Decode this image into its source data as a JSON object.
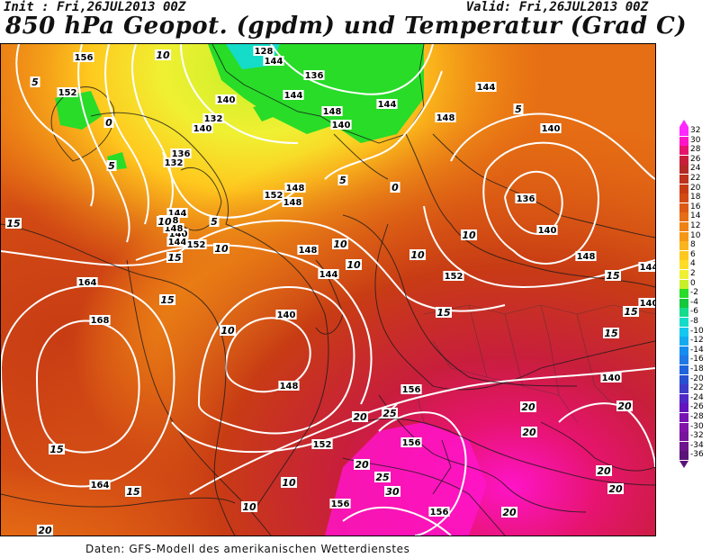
{
  "header": {
    "init": "Init : Fri,26JUL2013 00Z",
    "valid": "Valid: Fri,26JUL2013 00Z",
    "title": "850 hPa Geopot. (gpdm) und Temperatur (Grad C)"
  },
  "footer": "Daten: GFS-Modell des amerikanischen Wetterdienstes",
  "legend": {
    "levels": [
      {
        "label": "32",
        "color": "#ff28ff"
      },
      {
        "label": "30",
        "color": "#ff14c8"
      },
      {
        "label": "28",
        "color": "#e6146e"
      },
      {
        "label": "26",
        "color": "#c81e3c"
      },
      {
        "label": "24",
        "color": "#b42828"
      },
      {
        "label": "22",
        "color": "#be321e"
      },
      {
        "label": "20",
        "color": "#c83c14"
      },
      {
        "label": "18",
        "color": "#d24a14"
      },
      {
        "label": "16",
        "color": "#dc5a14"
      },
      {
        "label": "14",
        "color": "#e66e14"
      },
      {
        "label": "12",
        "color": "#ee8214"
      },
      {
        "label": "10",
        "color": "#f59614"
      },
      {
        "label": "8",
        "color": "#fab41e"
      },
      {
        "label": "6",
        "color": "#ffc81e"
      },
      {
        "label": "4",
        "color": "#ffdc28"
      },
      {
        "label": "2",
        "color": "#f0f032"
      },
      {
        "label": "0",
        "color": "#c8f028"
      },
      {
        "label": "-2",
        "color": "#28dc28"
      },
      {
        "label": "-4",
        "color": "#14c83c"
      },
      {
        "label": "-6",
        "color": "#14dc8c"
      },
      {
        "label": "-8",
        "color": "#14dcc8"
      },
      {
        "label": "-10",
        "color": "#14c8f0"
      },
      {
        "label": "-12",
        "color": "#14aaf0"
      },
      {
        "label": "-14",
        "color": "#148cf0"
      },
      {
        "label": "-16",
        "color": "#1e78e6"
      },
      {
        "label": "-18",
        "color": "#1e64dc"
      },
      {
        "label": "-20",
        "color": "#2850d2"
      },
      {
        "label": "-22",
        "color": "#3c3cc8"
      },
      {
        "label": "-24",
        "color": "#5028c8"
      },
      {
        "label": "-26",
        "color": "#6414be"
      },
      {
        "label": "-28",
        "color": "#7814b4"
      },
      {
        "label": "-30",
        "color": "#8214aa"
      },
      {
        "label": "-32",
        "color": "#78149b"
      },
      {
        "label": "-34",
        "color": "#6e148c"
      },
      {
        "label": "-36",
        "color": "#5a1478"
      }
    ]
  },
  "map": {
    "geopotential_labels": [
      "156",
      "152",
      "140",
      "136",
      "132",
      "128",
      "136",
      "144",
      "140",
      "148",
      "140",
      "144",
      "148",
      "144",
      "140",
      "136",
      "140",
      "152",
      "148",
      "144",
      "148",
      "140",
      "148",
      "144",
      "132",
      "144",
      "148",
      "152",
      "148",
      "164",
      "144",
      "168",
      "140",
      "152",
      "148",
      "148",
      "140",
      "156",
      "156",
      "152",
      "164",
      "156",
      "156",
      "144",
      "140"
    ],
    "temperature_labels": [
      "5",
      "10",
      "5",
      "0",
      "5",
      "10",
      "15",
      "15",
      "10",
      "15",
      "10",
      "5",
      "10",
      "10",
      "15",
      "10",
      "15",
      "15",
      "20",
      "20",
      "20",
      "20",
      "20",
      "20",
      "20",
      "25",
      "25",
      "30",
      "20",
      "15",
      "10",
      "10",
      "15",
      "20",
      "15",
      "10",
      "5",
      "0"
    ]
  }
}
